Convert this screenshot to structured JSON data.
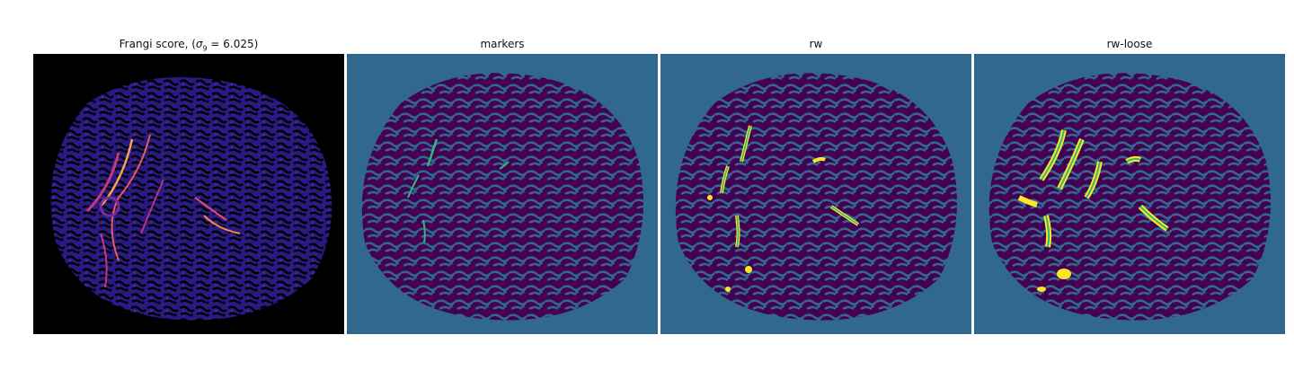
{
  "panels": [
    {
      "title_prefix": "Frangi score, (",
      "title_sigma": "σ",
      "title_sub": "9",
      "title_suffix": " = 6.025)",
      "colormap": "magma"
    },
    {
      "title": "markers",
      "colormap": "viridis"
    },
    {
      "title": "rw",
      "colormap": "viridis"
    },
    {
      "title": "rw-loose",
      "colormap": "viridis"
    }
  ],
  "colors": {
    "frangi_background": "#000000",
    "frangi_low": "#2b1a8a",
    "frangi_high": "#f7b04a",
    "segment_background": "#31688e",
    "segment_region": "#440154",
    "segment_marker": "#35b779",
    "segment_highlight": "#fde725"
  }
}
